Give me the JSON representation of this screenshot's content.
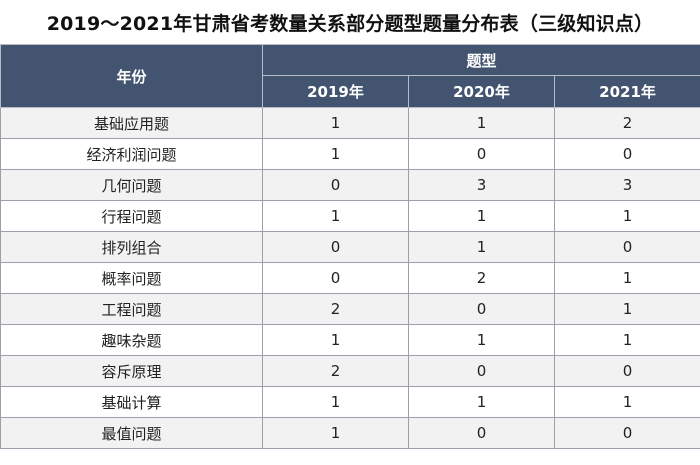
{
  "title": "2019～2021年甘肃省考数量关系部分题型题量分布表（三级知识点）",
  "table": {
    "header_row_label": "年份",
    "group_label": "题型",
    "year_headers": [
      "2019年",
      "2020年",
      "2021年"
    ],
    "rows": [
      {
        "label": "基础应用题",
        "values": [
          "1",
          "1",
          "2"
        ]
      },
      {
        "label": "经济利润问题",
        "values": [
          "1",
          "0",
          "0"
        ]
      },
      {
        "label": "几何问题",
        "values": [
          "0",
          "3",
          "3"
        ]
      },
      {
        "label": "行程问题",
        "values": [
          "1",
          "1",
          "1"
        ]
      },
      {
        "label": "排列组合",
        "values": [
          "0",
          "1",
          "0"
        ]
      },
      {
        "label": "概率问题",
        "values": [
          "0",
          "2",
          "1"
        ]
      },
      {
        "label": "工程问题",
        "values": [
          "2",
          "0",
          "1"
        ]
      },
      {
        "label": "趣味杂题",
        "values": [
          "1",
          "1",
          "1"
        ]
      },
      {
        "label": "容斥原理",
        "values": [
          "2",
          "0",
          "0"
        ]
      },
      {
        "label": "基础计算",
        "values": [
          "1",
          "1",
          "1"
        ]
      },
      {
        "label": "最值问题",
        "values": [
          "1",
          "0",
          "0"
        ]
      }
    ]
  },
  "colors": {
    "header_bg": "#435470",
    "header_text": "#ffffff",
    "row_alt_bg": "#f2f2f2",
    "row_bg": "#ffffff"
  }
}
